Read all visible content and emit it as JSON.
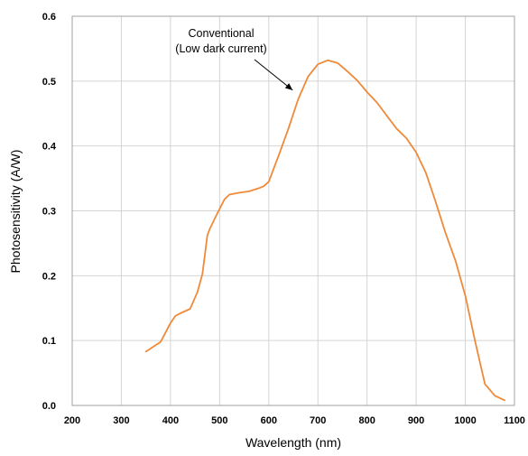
{
  "chart_data": {
    "type": "line",
    "title": "",
    "xlabel": "Wavelength (nm)",
    "ylabel": "Photosensitivity (A/W)",
    "xlim": [
      200,
      1100
    ],
    "ylim": [
      0,
      0.6
    ],
    "x_ticks": [
      200,
      300,
      400,
      500,
      600,
      700,
      800,
      900,
      1000,
      1100
    ],
    "x_tick_labels": [
      "200",
      "300",
      "400",
      "500",
      "600",
      "700",
      "800",
      "900",
      "1000",
      "1100"
    ],
    "y_ticks": [
      0,
      0.1,
      0.2,
      0.3,
      0.4,
      0.5,
      0.6
    ],
    "y_tick_labels": [
      "0.0",
      "0.1",
      "0.2",
      "0.3",
      "0.4",
      "0.5",
      "0.6"
    ],
    "grid": true,
    "series": [
      {
        "name": "Conventional (Low dark current)",
        "color": "#ee8a3a",
        "x": [
          350,
          380,
          400,
          410,
          420,
          440,
          455,
          465,
          470,
          475,
          480,
          490,
          500,
          510,
          520,
          540,
          560,
          580,
          590,
          600,
          610,
          620,
          640,
          660,
          680,
          700,
          720,
          740,
          760,
          780,
          800,
          820,
          840,
          860,
          880,
          900,
          920,
          940,
          960,
          980,
          1000,
          1020,
          1040,
          1060,
          1080
        ],
        "y": [
          0.083,
          0.098,
          0.127,
          0.138,
          0.142,
          0.149,
          0.175,
          0.203,
          0.232,
          0.262,
          0.272,
          0.288,
          0.303,
          0.318,
          0.325,
          0.328,
          0.33,
          0.335,
          0.338,
          0.345,
          0.365,
          0.385,
          0.427,
          0.472,
          0.507,
          0.526,
          0.532,
          0.528,
          0.515,
          0.501,
          0.483,
          0.467,
          0.447,
          0.427,
          0.412,
          0.39,
          0.358,
          0.313,
          0.265,
          0.223,
          0.169,
          0.099,
          0.033,
          0.015,
          0.008
        ]
      }
    ],
    "annotation": {
      "line1": "Conventional",
      "line2": "(Low dark current)",
      "arrow_target": [
        700,
        0.5
      ]
    }
  }
}
